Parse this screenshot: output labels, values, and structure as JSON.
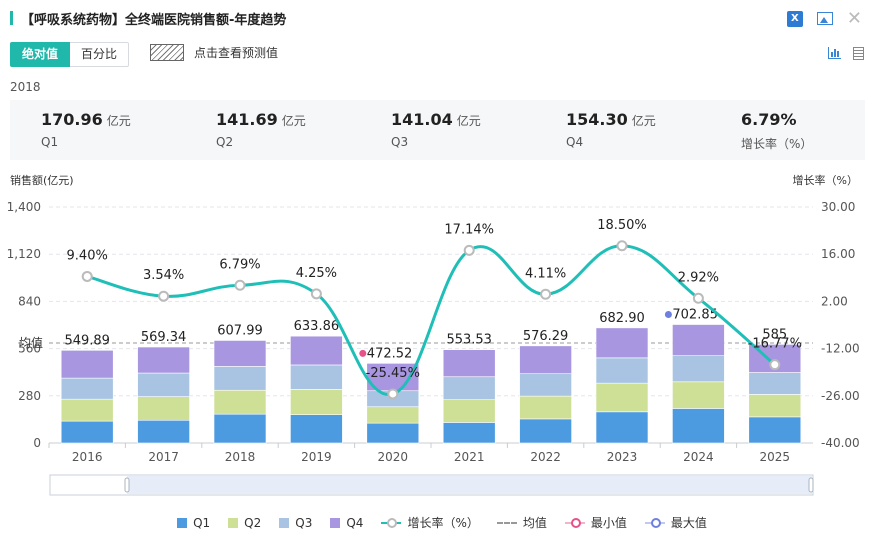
{
  "title": "【呼吸系统药物】全终端医院销售额-年度趋势",
  "icons": {
    "export": "excel-icon",
    "image": "image-icon",
    "close": "close-icon",
    "chart": "bar-chart-icon",
    "table": "table-icon"
  },
  "tabs": {
    "absolute": "绝对值",
    "percent": "百分比"
  },
  "forecast_label": "点击查看预测值",
  "summary": {
    "year": "2018",
    "items": [
      {
        "value": "170.96",
        "unit": "亿元",
        "label": "Q1"
      },
      {
        "value": "141.69",
        "unit": "亿元",
        "label": "Q2"
      },
      {
        "value": "141.04",
        "unit": "亿元",
        "label": "Q3"
      },
      {
        "value": "154.30",
        "unit": "亿元",
        "label": "Q4"
      },
      {
        "value": "6.79%",
        "unit": "",
        "label": "增长率（%）"
      }
    ]
  },
  "colors": {
    "q1": "#4c9be0",
    "q2": "#cedf96",
    "q3": "#a8c4e2",
    "q4": "#a896e0",
    "line": "#1fbfb8",
    "avg": "#999999",
    "min": "#e8508a",
    "max": "#6f7fe0"
  },
  "chart_data": {
    "type": "bar",
    "stacked": true,
    "categories": [
      "2016",
      "2017",
      "2018",
      "2019",
      "2020",
      "2021",
      "2022",
      "2023",
      "2024",
      "2025"
    ],
    "series": [
      {
        "name": "Q1",
        "values": [
          130,
          135,
          171,
          168,
          118,
          122,
          143,
          185,
          205,
          155
        ]
      },
      {
        "name": "Q2",
        "values": [
          130,
          140,
          142,
          150,
          97,
          135,
          135,
          170,
          158,
          133
        ]
      },
      {
        "name": "Q3",
        "values": [
          125,
          140,
          141,
          145,
          95,
          136,
          133,
          150,
          155,
          130
        ]
      },
      {
        "name": "Q4",
        "values": [
          164.89,
          154.34,
          154.3,
          170.86,
          162.52,
          160.53,
          165.29,
          177.9,
          184.85,
          167
        ]
      }
    ],
    "totals": [
      549.89,
      569.34,
      607.99,
      633.86,
      472.52,
      553.53,
      576.29,
      682.9,
      702.85,
      585
    ],
    "total_labels": [
      "549.89",
      "569.34",
      "607.99",
      "633.86",
      "472.52",
      "553.53",
      "576.29",
      "682.90",
      "702.85",
      "585"
    ],
    "growth": [
      9.4,
      3.54,
      6.79,
      4.25,
      -25.45,
      17.14,
      4.11,
      18.5,
      2.92,
      -16.77
    ],
    "growth_labels": [
      "9.40%",
      "3.54%",
      "6.79%",
      "4.25%",
      "-25.45%",
      "17.14%",
      "4.11%",
      "18.50%",
      "2.92%",
      "-16.77%"
    ],
    "average": 593.5,
    "average_label": "均值",
    "min_index": 4,
    "max_index": 8,
    "ylabel_left": "销售额(亿元)",
    "ylabel_right": "增长率（%）",
    "ylim_left": [
      0,
      1400
    ],
    "yticks_left": [
      "0",
      "280",
      "560",
      "840",
      "1,120",
      "1,400"
    ],
    "ylim_right": [
      -40,
      30
    ],
    "yticks_right": [
      "-40.00",
      "-26.00",
      "-12.00",
      "2.00",
      "16.00",
      "30.00"
    ]
  },
  "legend": {
    "q1": "Q1",
    "q2": "Q2",
    "q3": "Q3",
    "q4": "Q4",
    "growth": "增长率（%）",
    "avg": "均值",
    "min": "最小值",
    "max": "最大值"
  }
}
